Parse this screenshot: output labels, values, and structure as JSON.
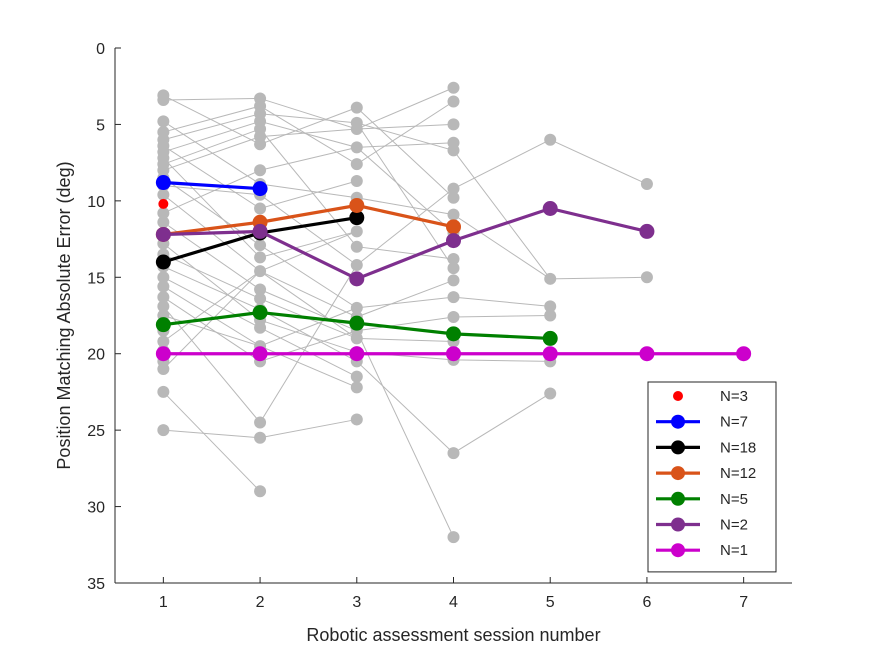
{
  "chart_data": {
    "type": "line",
    "xlabel": "Robotic assessment session number",
    "ylabel": "Position Matching Absolute Error (deg)",
    "xlim": [
      0.5,
      7.5
    ],
    "ylim": [
      0,
      35
    ],
    "y_reversed": true,
    "grid": false,
    "legend_position": "bottom-right",
    "xticks": [
      "1",
      "2",
      "3",
      "4",
      "5",
      "6",
      "7"
    ],
    "yticks": [
      "0",
      "5",
      "10",
      "15",
      "20",
      "25",
      "30",
      "35"
    ],
    "background_series": {
      "color": "#b8b8b8",
      "description_points": [
        [
          1,
          3.1
        ],
        [
          1,
          3.4
        ],
        [
          1,
          4.8
        ],
        [
          1,
          5.5
        ],
        [
          1,
          6.0
        ],
        [
          1,
          6.4
        ],
        [
          1,
          6.8
        ],
        [
          1,
          7.2
        ],
        [
          1,
          7.6
        ],
        [
          1,
          8.0
        ],
        [
          1,
          8.5
        ],
        [
          1,
          9.0
        ],
        [
          1,
          9.6
        ],
        [
          1,
          10.8
        ],
        [
          1,
          11.4
        ],
        [
          1,
          12.8
        ],
        [
          1,
          13.5
        ],
        [
          1,
          14.3
        ],
        [
          1,
          15.0
        ],
        [
          1,
          15.6
        ],
        [
          1,
          16.3
        ],
        [
          1,
          16.9
        ],
        [
          1,
          17.5
        ],
        [
          1,
          18.5
        ],
        [
          1,
          19.2
        ],
        [
          1,
          19.8
        ],
        [
          1,
          20.5
        ],
        [
          1,
          21.0
        ],
        [
          1,
          22.5
        ],
        [
          1,
          25.0
        ],
        [
          2,
          3.3
        ],
        [
          2,
          3.8
        ],
        [
          2,
          4.3
        ],
        [
          2,
          4.8
        ],
        [
          2,
          5.3
        ],
        [
          2,
          5.8
        ],
        [
          2,
          6.3
        ],
        [
          2,
          8.0
        ],
        [
          2,
          8.9
        ],
        [
          2,
          9.6
        ],
        [
          2,
          10.5
        ],
        [
          2,
          12.9
        ],
        [
          2,
          13.7
        ],
        [
          2,
          14.6
        ],
        [
          2,
          15.8
        ],
        [
          2,
          16.4
        ],
        [
          2,
          17.1
        ],
        [
          2,
          17.8
        ],
        [
          2,
          18.3
        ],
        [
          2,
          19.5
        ],
        [
          2,
          20.5
        ],
        [
          2,
          24.5
        ],
        [
          2,
          25.5
        ],
        [
          2,
          29.0
        ],
        [
          3,
          3.9
        ],
        [
          3,
          4.9
        ],
        [
          3,
          5.3
        ],
        [
          3,
          6.5
        ],
        [
          3,
          7.6
        ],
        [
          3,
          8.7
        ],
        [
          3,
          9.8
        ],
        [
          3,
          12.0
        ],
        [
          3,
          13.0
        ],
        [
          3,
          14.2
        ],
        [
          3,
          17.0
        ],
        [
          3,
          17.6
        ],
        [
          3,
          18.5
        ],
        [
          3,
          19.0
        ],
        [
          3,
          19.9
        ],
        [
          3,
          20.5
        ],
        [
          3,
          21.5
        ],
        [
          3,
          22.2
        ],
        [
          3,
          24.3
        ],
        [
          4,
          2.6
        ],
        [
          4,
          3.5
        ],
        [
          4,
          5.0
        ],
        [
          4,
          6.2
        ],
        [
          4,
          6.7
        ],
        [
          4,
          9.2
        ],
        [
          4,
          9.8
        ],
        [
          4,
          10.9
        ],
        [
          4,
          12.1
        ],
        [
          4,
          13.8
        ],
        [
          4,
          14.4
        ],
        [
          4,
          15.2
        ],
        [
          4,
          16.3
        ],
        [
          4,
          17.6
        ],
        [
          4,
          19.2
        ],
        [
          4,
          20.4
        ],
        [
          4,
          26.5
        ],
        [
          4,
          32.0
        ],
        [
          5,
          6.0
        ],
        [
          5,
          15.1
        ],
        [
          5,
          16.9
        ],
        [
          5,
          17.5
        ],
        [
          5,
          20.5
        ],
        [
          5,
          22.6
        ],
        [
          6,
          8.9
        ],
        [
          6,
          15.0
        ]
      ],
      "lines": [
        [
          [
            1,
            3.1
          ],
          [
            2,
            6.3
          ],
          [
            3,
            3.9
          ],
          [
            4,
            9.8
          ]
        ],
        [
          [
            1,
            3.4
          ],
          [
            2,
            3.3
          ],
          [
            3,
            5.3
          ],
          [
            4,
            2.6
          ]
        ],
        [
          [
            1,
            4.8
          ],
          [
            2,
            8.9
          ],
          [
            3,
            9.8
          ]
        ],
        [
          [
            1,
            5.5
          ],
          [
            2,
            3.8
          ],
          [
            3,
            7.6
          ],
          [
            4,
            3.5
          ]
        ],
        [
          [
            1,
            6.0
          ],
          [
            2,
            4.3
          ],
          [
            3,
            4.9
          ],
          [
            4,
            6.7
          ],
          [
            5,
            15.1
          ],
          [
            6,
            15.0
          ]
        ],
        [
          [
            1,
            6.4
          ],
          [
            2,
            10.5
          ],
          [
            3,
            8.7
          ]
        ],
        [
          [
            1,
            6.8
          ],
          [
            2,
            4.8
          ],
          [
            3,
            6.5
          ],
          [
            4,
            12.1
          ]
        ],
        [
          [
            1,
            7.2
          ],
          [
            2,
            13.7
          ],
          [
            3,
            12.0
          ]
        ],
        [
          [
            1,
            7.6
          ],
          [
            2,
            5.3
          ],
          [
            3,
            13.0
          ],
          [
            4,
            13.8
          ]
        ],
        [
          [
            1,
            8.0
          ],
          [
            2,
            5.8
          ],
          [
            3,
            5.3
          ],
          [
            4,
            5.0
          ]
        ],
        [
          [
            1,
            8.5
          ],
          [
            2,
            12.9
          ],
          [
            3,
            17.0
          ],
          [
            4,
            16.3
          ],
          [
            5,
            16.9
          ]
        ],
        [
          [
            1,
            9.0
          ],
          [
            2,
            9.6
          ],
          [
            3,
            14.2
          ],
          [
            4,
            9.2
          ],
          [
            5,
            6.0
          ],
          [
            6,
            8.9
          ]
        ],
        [
          [
            1,
            9.6
          ],
          [
            2,
            14.6
          ],
          [
            3,
            17.6
          ],
          [
            4,
            15.2
          ]
        ],
        [
          [
            1,
            10.8
          ],
          [
            2,
            8.0
          ],
          [
            3,
            6.5
          ],
          [
            4,
            6.2
          ]
        ],
        [
          [
            1,
            11.4
          ],
          [
            2,
            15.8
          ],
          [
            3,
            18.5
          ],
          [
            4,
            17.6
          ],
          [
            5,
            17.5
          ]
        ],
        [
          [
            1,
            12.8
          ],
          [
            2,
            17.8
          ],
          [
            3,
            19.9
          ],
          [
            4,
            20.4
          ],
          [
            5,
            20.5
          ]
        ],
        [
          [
            1,
            13.5
          ],
          [
            2,
            16.4
          ],
          [
            3,
            19.0
          ],
          [
            4,
            19.2
          ]
        ],
        [
          [
            1,
            14.3
          ],
          [
            2,
            17.1
          ],
          [
            3,
            20.5
          ],
          [
            4,
            26.5
          ],
          [
            5,
            22.6
          ]
        ],
        [
          [
            1,
            15.0
          ],
          [
            2,
            18.3
          ],
          [
            3,
            21.5
          ]
        ],
        [
          [
            1,
            15.6
          ],
          [
            2,
            19.5
          ],
          [
            3,
            22.2
          ]
        ],
        [
          [
            1,
            16.3
          ],
          [
            2,
            20.5
          ],
          [
            3,
            18.5
          ],
          [
            4,
            32.0
          ]
        ],
        [
          [
            1,
            16.9
          ],
          [
            2,
            24.5
          ],
          [
            3,
            14.2
          ]
        ],
        [
          [
            1,
            17.5
          ],
          [
            2,
            19.5
          ],
          [
            3,
            17.0
          ]
        ],
        [
          [
            1,
            19.2
          ],
          [
            2,
            14.6
          ],
          [
            3,
            12.0
          ]
        ],
        [
          [
            1,
            21.0
          ],
          [
            2,
            14.6
          ],
          [
            3,
            19.0
          ]
        ],
        [
          [
            1,
            22.5
          ],
          [
            2,
            29.0
          ]
        ],
        [
          [
            1,
            25.0
          ],
          [
            2,
            25.5
          ],
          [
            3,
            24.3
          ]
        ],
        [
          [
            3,
            9.8
          ],
          [
            4,
            10.9
          ],
          [
            5,
            15.1
          ]
        ],
        [
          [
            3,
            4.9
          ],
          [
            4,
            14.4
          ]
        ]
      ]
    },
    "series": [
      {
        "name": "N=3",
        "color": "#ff0000",
        "marker_only": true,
        "x": [
          1
        ],
        "y": [
          10.2
        ]
      },
      {
        "name": "N=7",
        "color": "#0000ff",
        "x": [
          1,
          2
        ],
        "y": [
          8.8,
          9.2
        ]
      },
      {
        "name": "N=18",
        "color": "#000000",
        "x": [
          1,
          2,
          3
        ],
        "y": [
          14.0,
          12.1,
          11.1
        ]
      },
      {
        "name": "N=12",
        "color": "#d95319",
        "x": [
          1,
          2,
          3,
          4
        ],
        "y": [
          12.2,
          11.4,
          10.3,
          11.7
        ]
      },
      {
        "name": "N=5",
        "color": "#008000",
        "x": [
          1,
          2,
          3,
          4,
          5
        ],
        "y": [
          18.1,
          17.3,
          18.0,
          18.7,
          19.0
        ]
      },
      {
        "name": "N=2",
        "color": "#7e2f8e",
        "x": [
          1,
          2,
          3,
          4,
          5,
          6
        ],
        "y": [
          12.2,
          12.0,
          15.1,
          12.6,
          10.5,
          12.0
        ]
      },
      {
        "name": "N=1",
        "color": "#cc00cc",
        "x": [
          1,
          2,
          3,
          4,
          5,
          6,
          7
        ],
        "y": [
          20,
          20,
          20,
          20,
          20,
          20,
          20
        ]
      }
    ]
  }
}
